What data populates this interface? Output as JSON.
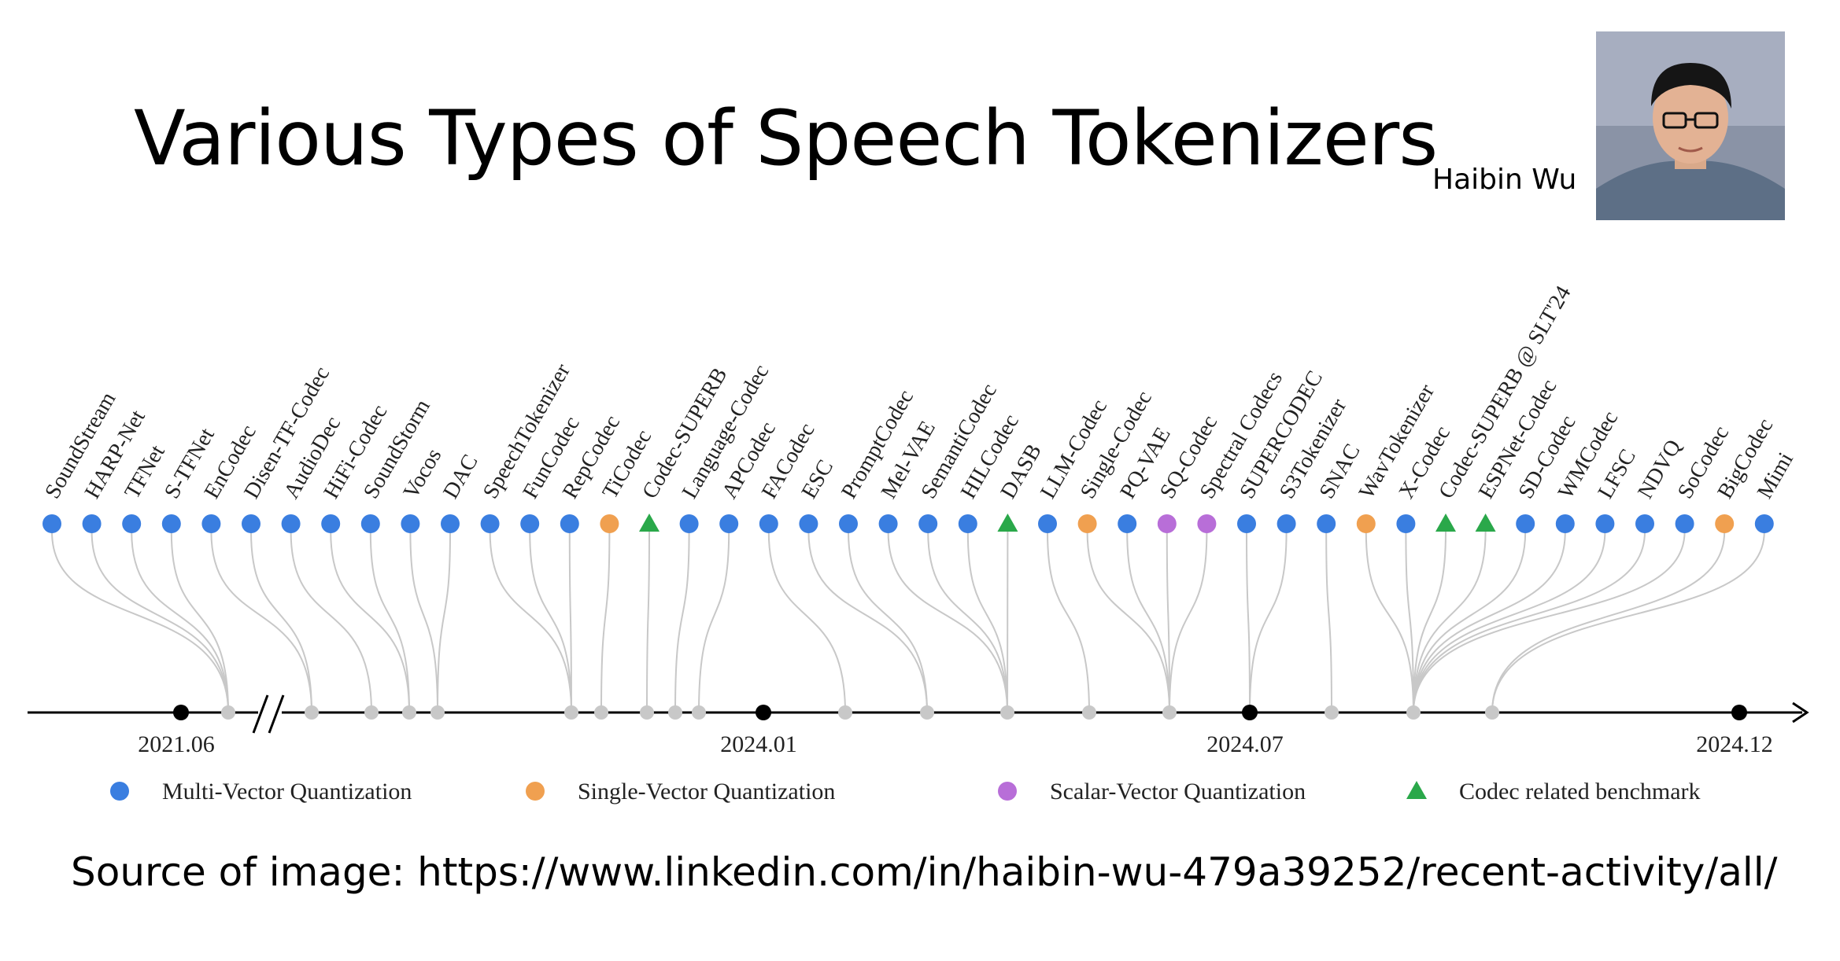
{
  "title": "Various Types of Speech Tokenizers",
  "author": "Haibin Wu",
  "source": "Source of image: https://www.linkedin.com/in/haibin-wu-479a39252/recent-activity/all/",
  "colors": {
    "multi": "#3a7ee0",
    "single": "#f0a050",
    "scalar": "#b86ed8",
    "benchmark": "#2aa84a",
    "connector": "#c8c8c8",
    "milestone": "#000000",
    "axis": "#000000"
  },
  "legend": [
    {
      "key": "multi",
      "label": "Multi-Vector Quantization",
      "shape": "circle"
    },
    {
      "key": "single",
      "label": "Single-Vector Quantization",
      "shape": "circle"
    },
    {
      "key": "scalar",
      "label": "Scalar-Vector Quantization",
      "shape": "circle"
    },
    {
      "key": "benchmark",
      "label": "Codec related benchmark",
      "shape": "triangle"
    }
  ],
  "milestones": [
    "2021.06",
    "2024.01",
    "2024.07",
    "2024.12"
  ],
  "tokenizers": [
    {
      "name": "SoundStream",
      "type": "multi"
    },
    {
      "name": "HARP-Net",
      "type": "multi"
    },
    {
      "name": "TFNet",
      "type": "multi"
    },
    {
      "name": "S-TFNet",
      "type": "multi"
    },
    {
      "name": "EnCodec",
      "type": "multi"
    },
    {
      "name": "Disen-TF-Codec",
      "type": "multi"
    },
    {
      "name": "AudioDec",
      "type": "multi"
    },
    {
      "name": "HiFi-Codec",
      "type": "multi"
    },
    {
      "name": "SoundStorm",
      "type": "multi"
    },
    {
      "name": "Vocos",
      "type": "multi"
    },
    {
      "name": "DAC",
      "type": "multi"
    },
    {
      "name": "SpeechTokenizer",
      "type": "multi"
    },
    {
      "name": "FunCodec",
      "type": "multi"
    },
    {
      "name": "RepCodec",
      "type": "multi"
    },
    {
      "name": "TiCodec",
      "type": "single"
    },
    {
      "name": "Codec-SUPERB",
      "type": "benchmark"
    },
    {
      "name": "Language-Codec",
      "type": "multi"
    },
    {
      "name": "APCodec",
      "type": "multi"
    },
    {
      "name": "FACodec",
      "type": "multi"
    },
    {
      "name": "ESC",
      "type": "multi"
    },
    {
      "name": "PromptCodec",
      "type": "multi"
    },
    {
      "name": "Mel-VAE",
      "type": "multi"
    },
    {
      "name": "SemantiCodec",
      "type": "multi"
    },
    {
      "name": "HILCodec",
      "type": "multi"
    },
    {
      "name": "DASB",
      "type": "benchmark"
    },
    {
      "name": "LLM-Codec",
      "type": "multi"
    },
    {
      "name": "Single-Codec",
      "type": "single"
    },
    {
      "name": "PQ-VAE",
      "type": "multi"
    },
    {
      "name": "SQ-Codec",
      "type": "scalar"
    },
    {
      "name": "Spectral Codecs",
      "type": "scalar"
    },
    {
      "name": "SUPERCODEC",
      "type": "multi"
    },
    {
      "name": "S3Tokenizer",
      "type": "multi"
    },
    {
      "name": "SNAC",
      "type": "multi"
    },
    {
      "name": "WavTokenizer",
      "type": "single"
    },
    {
      "name": "X-Codec",
      "type": "multi"
    },
    {
      "name": "Codec-SUPERB @ SLT'24",
      "type": "benchmark"
    },
    {
      "name": "ESPNet-Codec",
      "type": "benchmark"
    },
    {
      "name": "SD-Codec",
      "type": "multi"
    },
    {
      "name": "WMCodec",
      "type": "multi"
    },
    {
      "name": "LFSC",
      "type": "multi"
    },
    {
      "name": "NDVQ",
      "type": "multi"
    },
    {
      "name": "SoCodec",
      "type": "multi"
    },
    {
      "name": "BigCodec",
      "type": "single"
    },
    {
      "name": "Mimi",
      "type": "multi"
    }
  ]
}
